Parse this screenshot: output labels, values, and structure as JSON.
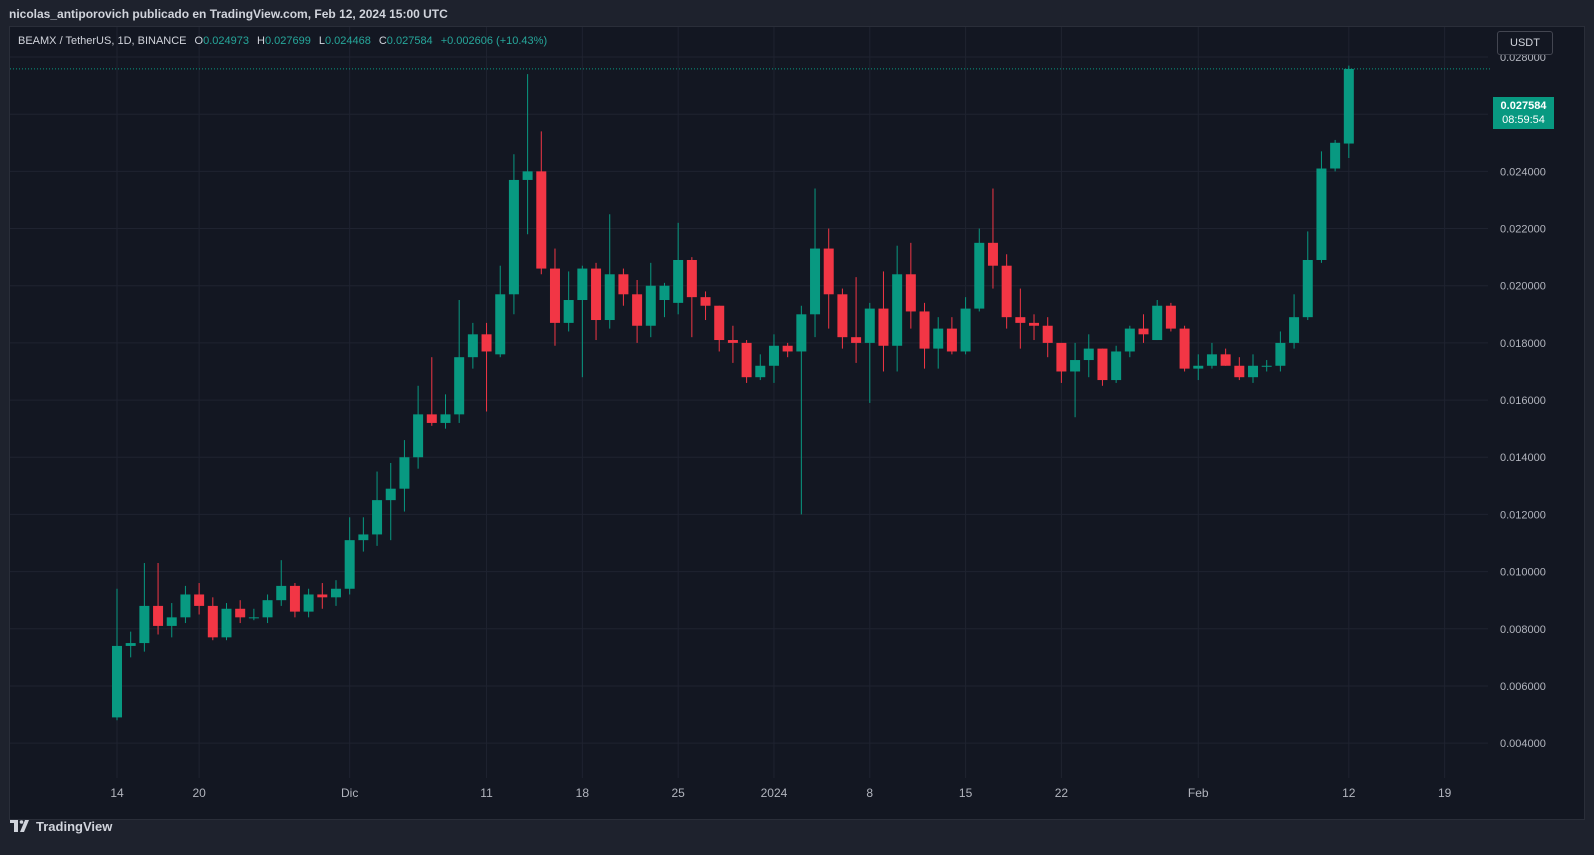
{
  "header": {
    "publisher_line": "nicolas_antiporovich publicado en TradingView.com, Feb 12, 2024 15:00 UTC"
  },
  "legend": {
    "symbol": "BEAMX / TetherUS, 1D, BINANCE",
    "o_label": "O",
    "o_value": "0.024973",
    "h_label": "H",
    "h_value": "0.027699",
    "l_label": "L",
    "l_value": "0.024468",
    "c_label": "C",
    "c_value": "0.027584",
    "change": "+0.002606 (+10.43%)"
  },
  "currency_button": {
    "label": "USDT"
  },
  "last_price": {
    "price": "0.027584",
    "countdown": "08:59:54"
  },
  "footer": {
    "brand": "TradingView"
  },
  "colors": {
    "up": "#089981",
    "down": "#f23645",
    "grid": "#1f2330",
    "background": "#131722",
    "text": "#d1d4dc"
  },
  "chart_data": {
    "type": "candlestick",
    "title": "BEAMX / TetherUS, 1D, BINANCE",
    "y_ticks": [
      "0.028000",
      "0.026000",
      "0.024000",
      "0.022000",
      "0.020000",
      "0.018000",
      "0.016000",
      "0.014000",
      "0.012000",
      "0.010000",
      "0.008000",
      "0.006000",
      "0.004000"
    ],
    "ylim": [
      0.00278,
      0.02905
    ],
    "x_ticks": [
      {
        "label": "14",
        "date": "2023-11-14"
      },
      {
        "label": "20",
        "date": "2023-11-20"
      },
      {
        "label": "Dic",
        "date": "2023-12-01"
      },
      {
        "label": "11",
        "date": "2023-12-11"
      },
      {
        "label": "18",
        "date": "2023-12-18"
      },
      {
        "label": "25",
        "date": "2023-12-25"
      },
      {
        "label": "2024",
        "date": "2024-01-01"
      },
      {
        "label": "8",
        "date": "2024-01-08"
      },
      {
        "label": "15",
        "date": "2024-01-15"
      },
      {
        "label": "22",
        "date": "2024-01-22"
      },
      {
        "label": "Feb",
        "date": "2024-02-01"
      },
      {
        "label": "12",
        "date": "2024-02-12"
      },
      {
        "label": "19",
        "date": "2024-02-19"
      }
    ],
    "xlim": [
      "2023-11-14",
      "2024-02-21"
    ],
    "candles": [
      {
        "date": "2023-11-14",
        "o": 0.0049,
        "h": 0.0094,
        "l": 0.0048,
        "c": 0.0074
      },
      {
        "date": "2023-11-15",
        "o": 0.0074,
        "h": 0.0079,
        "l": 0.007,
        "c": 0.0075
      },
      {
        "date": "2023-11-16",
        "o": 0.0075,
        "h": 0.0103,
        "l": 0.0072,
        "c": 0.0088
      },
      {
        "date": "2023-11-17",
        "o": 0.0088,
        "h": 0.0103,
        "l": 0.0078,
        "c": 0.0081
      },
      {
        "date": "2023-11-18",
        "o": 0.0081,
        "h": 0.0089,
        "l": 0.0077,
        "c": 0.0084
      },
      {
        "date": "2023-11-19",
        "o": 0.0084,
        "h": 0.0095,
        "l": 0.0082,
        "c": 0.0092
      },
      {
        "date": "2023-11-20",
        "o": 0.0092,
        "h": 0.0096,
        "l": 0.0085,
        "c": 0.0088
      },
      {
        "date": "2023-11-21",
        "o": 0.0088,
        "h": 0.0091,
        "l": 0.0076,
        "c": 0.0077
      },
      {
        "date": "2023-11-22",
        "o": 0.0077,
        "h": 0.0089,
        "l": 0.0076,
        "c": 0.0087
      },
      {
        "date": "2023-11-23",
        "o": 0.0087,
        "h": 0.009,
        "l": 0.0082,
        "c": 0.0084
      },
      {
        "date": "2023-11-24",
        "o": 0.0084,
        "h": 0.0087,
        "l": 0.0083,
        "c": 0.0084
      },
      {
        "date": "2023-11-25",
        "o": 0.0084,
        "h": 0.0092,
        "l": 0.0082,
        "c": 0.009
      },
      {
        "date": "2023-11-26",
        "o": 0.009,
        "h": 0.0104,
        "l": 0.0088,
        "c": 0.0095
      },
      {
        "date": "2023-11-27",
        "o": 0.0095,
        "h": 0.0096,
        "l": 0.0084,
        "c": 0.0086
      },
      {
        "date": "2023-11-28",
        "o": 0.0086,
        "h": 0.0094,
        "l": 0.0084,
        "c": 0.0092
      },
      {
        "date": "2023-11-29",
        "o": 0.0092,
        "h": 0.0096,
        "l": 0.0087,
        "c": 0.0091
      },
      {
        "date": "2023-11-30",
        "o": 0.0091,
        "h": 0.0097,
        "l": 0.0088,
        "c": 0.0094
      },
      {
        "date": "2023-12-01",
        "o": 0.0094,
        "h": 0.0119,
        "l": 0.0092,
        "c": 0.0111
      },
      {
        "date": "2023-12-02",
        "o": 0.0111,
        "h": 0.0119,
        "l": 0.0107,
        "c": 0.0113
      },
      {
        "date": "2023-12-03",
        "o": 0.0113,
        "h": 0.0135,
        "l": 0.0109,
        "c": 0.0125
      },
      {
        "date": "2023-12-04",
        "o": 0.0125,
        "h": 0.0138,
        "l": 0.0111,
        "c": 0.0129
      },
      {
        "date": "2023-12-05",
        "o": 0.0129,
        "h": 0.0146,
        "l": 0.0121,
        "c": 0.014
      },
      {
        "date": "2023-12-06",
        "o": 0.014,
        "h": 0.0165,
        "l": 0.0136,
        "c": 0.0155
      },
      {
        "date": "2023-12-07",
        "o": 0.0155,
        "h": 0.0175,
        "l": 0.0151,
        "c": 0.0152
      },
      {
        "date": "2023-12-08",
        "o": 0.0152,
        "h": 0.0162,
        "l": 0.015,
        "c": 0.0155
      },
      {
        "date": "2023-12-09",
        "o": 0.0155,
        "h": 0.0195,
        "l": 0.0152,
        "c": 0.0175
      },
      {
        "date": "2023-12-10",
        "o": 0.0175,
        "h": 0.0187,
        "l": 0.0171,
        "c": 0.0183
      },
      {
        "date": "2023-12-11",
        "o": 0.0183,
        "h": 0.0187,
        "l": 0.0156,
        "c": 0.0177
      },
      {
        "date": "2023-12-12",
        "o": 0.0176,
        "h": 0.0207,
        "l": 0.0175,
        "c": 0.0197
      },
      {
        "date": "2023-12-13",
        "o": 0.0197,
        "h": 0.0246,
        "l": 0.019,
        "c": 0.0237
      },
      {
        "date": "2023-12-14",
        "o": 0.0237,
        "h": 0.0274,
        "l": 0.0218,
        "c": 0.024
      },
      {
        "date": "2023-12-15",
        "o": 0.024,
        "h": 0.0254,
        "l": 0.0204,
        "c": 0.0206
      },
      {
        "date": "2023-12-16",
        "o": 0.0206,
        "h": 0.0213,
        "l": 0.0179,
        "c": 0.0187
      },
      {
        "date": "2023-12-17",
        "o": 0.0187,
        "h": 0.0205,
        "l": 0.0184,
        "c": 0.0195
      },
      {
        "date": "2023-12-18",
        "o": 0.0195,
        "h": 0.0207,
        "l": 0.0168,
        "c": 0.0206
      },
      {
        "date": "2023-12-19",
        "o": 0.0206,
        "h": 0.0208,
        "l": 0.0181,
        "c": 0.0188
      },
      {
        "date": "2023-12-20",
        "o": 0.0188,
        "h": 0.0225,
        "l": 0.0185,
        "c": 0.0204
      },
      {
        "date": "2023-12-21",
        "o": 0.0204,
        "h": 0.0206,
        "l": 0.0193,
        "c": 0.0197
      },
      {
        "date": "2023-12-22",
        "o": 0.0197,
        "h": 0.0202,
        "l": 0.018,
        "c": 0.0186
      },
      {
        "date": "2023-12-23",
        "o": 0.0186,
        "h": 0.0208,
        "l": 0.0182,
        "c": 0.02
      },
      {
        "date": "2023-12-24",
        "o": 0.0195,
        "h": 0.0201,
        "l": 0.0189,
        "c": 0.02
      },
      {
        "date": "2023-12-25",
        "o": 0.0194,
        "h": 0.0222,
        "l": 0.019,
        "c": 0.0209
      },
      {
        "date": "2023-12-26",
        "o": 0.0209,
        "h": 0.021,
        "l": 0.0182,
        "c": 0.0196
      },
      {
        "date": "2023-12-27",
        "o": 0.0196,
        "h": 0.0198,
        "l": 0.0188,
        "c": 0.0193
      },
      {
        "date": "2023-12-28",
        "o": 0.0193,
        "h": 0.0193,
        "l": 0.0177,
        "c": 0.0181
      },
      {
        "date": "2023-12-29",
        "o": 0.0181,
        "h": 0.0186,
        "l": 0.0173,
        "c": 0.018
      },
      {
        "date": "2023-12-30",
        "o": 0.018,
        "h": 0.0181,
        "l": 0.0166,
        "c": 0.0168
      },
      {
        "date": "2023-12-31",
        "o": 0.0168,
        "h": 0.0176,
        "l": 0.0167,
        "c": 0.0172
      },
      {
        "date": "2024-01-01",
        "o": 0.0172,
        "h": 0.0183,
        "l": 0.0166,
        "c": 0.0179
      },
      {
        "date": "2024-01-02",
        "o": 0.0179,
        "h": 0.018,
        "l": 0.0175,
        "c": 0.0177
      },
      {
        "date": "2024-01-03",
        "o": 0.0177,
        "h": 0.0193,
        "l": 0.012,
        "c": 0.019
      },
      {
        "date": "2024-01-04",
        "o": 0.019,
        "h": 0.0234,
        "l": 0.0182,
        "c": 0.0213
      },
      {
        "date": "2024-01-05",
        "o": 0.0213,
        "h": 0.022,
        "l": 0.0185,
        "c": 0.0197
      },
      {
        "date": "2024-01-06",
        "o": 0.0197,
        "h": 0.0199,
        "l": 0.0178,
        "c": 0.0182
      },
      {
        "date": "2024-01-07",
        "o": 0.0182,
        "h": 0.0203,
        "l": 0.0173,
        "c": 0.018
      },
      {
        "date": "2024-01-08",
        "o": 0.018,
        "h": 0.0194,
        "l": 0.0159,
        "c": 0.0192
      },
      {
        "date": "2024-01-09",
        "o": 0.0192,
        "h": 0.0205,
        "l": 0.017,
        "c": 0.0179
      },
      {
        "date": "2024-01-10",
        "o": 0.0179,
        "h": 0.0214,
        "l": 0.017,
        "c": 0.0204
      },
      {
        "date": "2024-01-11",
        "o": 0.0204,
        "h": 0.0215,
        "l": 0.0185,
        "c": 0.0191
      },
      {
        "date": "2024-01-12",
        "o": 0.0191,
        "h": 0.0194,
        "l": 0.0171,
        "c": 0.0178
      },
      {
        "date": "2024-01-13",
        "o": 0.0178,
        "h": 0.0189,
        "l": 0.0171,
        "c": 0.0185
      },
      {
        "date": "2024-01-14",
        "o": 0.0185,
        "h": 0.0189,
        "l": 0.0176,
        "c": 0.0177
      },
      {
        "date": "2024-01-15",
        "o": 0.0177,
        "h": 0.0196,
        "l": 0.0176,
        "c": 0.0192
      },
      {
        "date": "2024-01-16",
        "o": 0.0192,
        "h": 0.022,
        "l": 0.0191,
        "c": 0.0215
      },
      {
        "date": "2024-01-17",
        "o": 0.0215,
        "h": 0.0234,
        "l": 0.0199,
        "c": 0.0207
      },
      {
        "date": "2024-01-18",
        "o": 0.0207,
        "h": 0.0211,
        "l": 0.0185,
        "c": 0.0189
      },
      {
        "date": "2024-01-19",
        "o": 0.0189,
        "h": 0.0199,
        "l": 0.0178,
        "c": 0.0187
      },
      {
        "date": "2024-01-20",
        "o": 0.0187,
        "h": 0.019,
        "l": 0.0181,
        "c": 0.0186
      },
      {
        "date": "2024-01-21",
        "o": 0.0186,
        "h": 0.0189,
        "l": 0.0175,
        "c": 0.018
      },
      {
        "date": "2024-01-22",
        "o": 0.018,
        "h": 0.018,
        "l": 0.0166,
        "c": 0.017
      },
      {
        "date": "2024-01-23",
        "o": 0.017,
        "h": 0.018,
        "l": 0.0154,
        "c": 0.0174
      },
      {
        "date": "2024-01-24",
        "o": 0.0174,
        "h": 0.0183,
        "l": 0.0168,
        "c": 0.0178
      },
      {
        "date": "2024-01-25",
        "o": 0.0178,
        "h": 0.0178,
        "l": 0.0165,
        "c": 0.0167
      },
      {
        "date": "2024-01-26",
        "o": 0.0167,
        "h": 0.0179,
        "l": 0.0166,
        "c": 0.0177
      },
      {
        "date": "2024-01-27",
        "o": 0.0177,
        "h": 0.0186,
        "l": 0.0175,
        "c": 0.0185
      },
      {
        "date": "2024-01-28",
        "o": 0.0185,
        "h": 0.019,
        "l": 0.018,
        "c": 0.0183
      },
      {
        "date": "2024-01-29",
        "o": 0.0181,
        "h": 0.0195,
        "l": 0.0181,
        "c": 0.0193
      },
      {
        "date": "2024-01-30",
        "o": 0.0193,
        "h": 0.0194,
        "l": 0.0184,
        "c": 0.0185
      },
      {
        "date": "2024-01-31",
        "o": 0.0185,
        "h": 0.0186,
        "l": 0.017,
        "c": 0.0171
      },
      {
        "date": "2024-02-01",
        "o": 0.0171,
        "h": 0.0176,
        "l": 0.0167,
        "c": 0.0172
      },
      {
        "date": "2024-02-02",
        "o": 0.0172,
        "h": 0.018,
        "l": 0.0171,
        "c": 0.0176
      },
      {
        "date": "2024-02-03",
        "o": 0.0176,
        "h": 0.0178,
        "l": 0.0172,
        "c": 0.0172
      },
      {
        "date": "2024-02-04",
        "o": 0.0172,
        "h": 0.0175,
        "l": 0.0167,
        "c": 0.0168
      },
      {
        "date": "2024-02-05",
        "o": 0.0168,
        "h": 0.0176,
        "l": 0.0166,
        "c": 0.0172
      },
      {
        "date": "2024-02-06",
        "o": 0.0172,
        "h": 0.0174,
        "l": 0.017,
        "c": 0.0172
      },
      {
        "date": "2024-02-07",
        "o": 0.0172,
        "h": 0.0184,
        "l": 0.017,
        "c": 0.018
      },
      {
        "date": "2024-02-08",
        "o": 0.018,
        "h": 0.0197,
        "l": 0.0178,
        "c": 0.0189
      },
      {
        "date": "2024-02-09",
        "o": 0.0189,
        "h": 0.0219,
        "l": 0.0188,
        "c": 0.0209
      },
      {
        "date": "2024-02-10",
        "o": 0.0209,
        "h": 0.0247,
        "l": 0.0208,
        "c": 0.0241
      },
      {
        "date": "2024-02-11",
        "o": 0.0241,
        "h": 0.0251,
        "l": 0.024,
        "c": 0.025
      },
      {
        "date": "2024-02-12",
        "o": 0.024973,
        "h": 0.027699,
        "l": 0.024468,
        "c": 0.027584
      }
    ]
  }
}
